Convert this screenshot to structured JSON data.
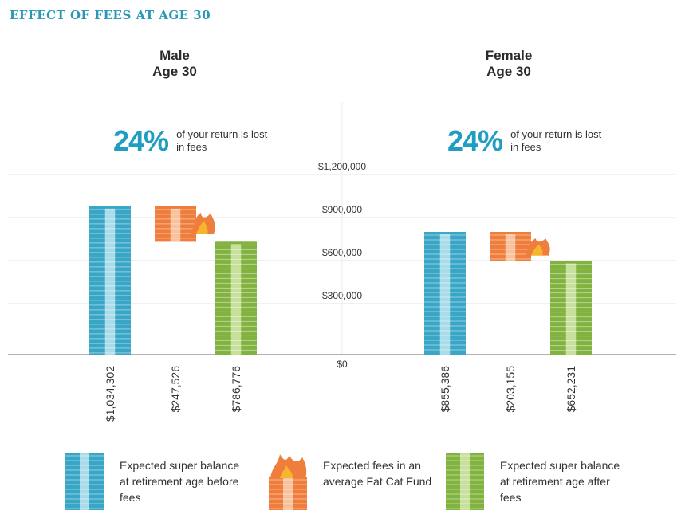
{
  "title": "EFFECT OF FEES AT AGE 30",
  "panels": [
    {
      "heading_line1": "Male",
      "heading_line2": "Age 30",
      "pct": "24%",
      "pct_text": "of your return is lost in fees"
    },
    {
      "heading_line1": "Female",
      "heading_line2": "Age 30",
      "pct": "24%",
      "pct_text": "of your return is lost in fees"
    }
  ],
  "legend": [
    {
      "label": "Expected super balance at retirement age before fees",
      "icon": "blue-money-stack-icon",
      "color": "#3aa6c6"
    },
    {
      "label": "Expected fees in an average Fat Cat Fund",
      "icon": "burning-money-stack-icon",
      "color": "#ef7d3c"
    },
    {
      "label": "Expected super balance at retirement age after fees",
      "icon": "green-money-stack-icon",
      "color": "#82b23f"
    }
  ],
  "chart_data": {
    "type": "bar",
    "ylim": [
      0,
      1200000
    ],
    "yticks": [
      "$0",
      "$300,000",
      "$600,000",
      "$900,000",
      "$1,200,000"
    ],
    "ytick_values": [
      0,
      300000,
      600000,
      900000,
      1200000
    ],
    "groups": [
      {
        "bars": [
          {
            "kind": "before",
            "label": "$1,034,302",
            "value": 1034302,
            "bottom": 0
          },
          {
            "kind": "fees",
            "label": "$247,526",
            "value": 247526,
            "bottom": 786776
          },
          {
            "kind": "after",
            "label": "$786,776",
            "value": 786776,
            "bottom": 0
          }
        ]
      },
      {
        "bars": [
          {
            "kind": "before",
            "label": "$855,386",
            "value": 855386,
            "bottom": 0
          },
          {
            "kind": "fees",
            "label": "$203,155",
            "value": 203155,
            "bottom": 652231
          },
          {
            "kind": "after",
            "label": "$652,231",
            "value": 652231,
            "bottom": 0
          }
        ]
      }
    ],
    "colors": {
      "before": "#3aa6c6",
      "before_light": "#a9dcea",
      "fees": "#ef7d3c",
      "fees_light": "#f8c29c",
      "after": "#82b23f",
      "after_light": "#c7e09b",
      "flame": "#ef7d3c",
      "flame_inner": "#f7b52c",
      "grid": "#e3e3e3",
      "axis": "#666666"
    }
  }
}
